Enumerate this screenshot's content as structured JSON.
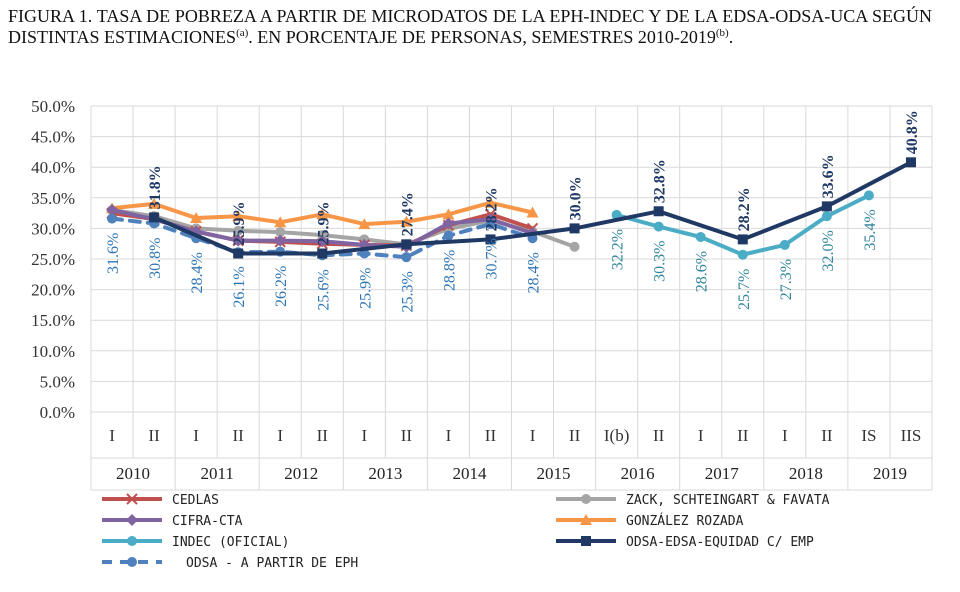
{
  "figure": {
    "title_main": "FIGURA 1. TASA DE POBREZA A PARTIR DE MICRODATOS DE LA EPH-INDEC Y DE LA EDSA-ODSA-UCA SEGÚN DISTINTAS ESTIMACIONES",
    "title_sup1": "(a)",
    "title_mid": ". EN PORCENTAJE DE PERSONAS, SEMESTRES 2010-2019",
    "title_sup2": "(b)",
    "title_end": "."
  },
  "chart_data": {
    "type": "line",
    "ylim": [
      0,
      50
    ],
    "yticks": [
      "0.0%",
      "5.0%",
      "10.0%",
      "15.0%",
      "20.0%",
      "25.0%",
      "30.0%",
      "35.0%",
      "40.0%",
      "45.0%",
      "50.0%"
    ],
    "ytick_values": [
      0,
      5,
      10,
      15,
      20,
      25,
      30,
      35,
      40,
      45,
      50
    ],
    "semesters": [
      "I",
      "II",
      "I",
      "II",
      "I",
      "II",
      "I",
      "II",
      "I",
      "II",
      "I",
      "II",
      "I(b)",
      "II",
      "I",
      "II",
      "I",
      "II",
      "IS",
      "IIS"
    ],
    "years": [
      "2010",
      "2011",
      "2012",
      "2013",
      "2014",
      "2015",
      "2016",
      "2017",
      "2018",
      "2019"
    ],
    "grid": true,
    "legend_position": "bottom",
    "series": [
      {
        "name": "CEDLAS",
        "color": "#c0504d",
        "marker": "x",
        "dash": false,
        "values": [
          32.5,
          31.5,
          29.5,
          28.0,
          27.8,
          27.5,
          27.3,
          27.2,
          30.5,
          32.3,
          30.0,
          null,
          null,
          null,
          null,
          null,
          null,
          null,
          null,
          null
        ]
      },
      {
        "name": "ZACK, SCHTEINGART & FAVATA",
        "color": "#a5a5a5",
        "marker": "circle",
        "dash": false,
        "values": [
          33.0,
          32.0,
          30.0,
          29.6,
          29.4,
          28.9,
          28.2,
          27.4,
          29.9,
          31.3,
          29.5,
          27.0,
          null,
          null,
          null,
          null,
          null,
          null,
          null,
          null
        ]
      },
      {
        "name": "CIFRA-CTA",
        "color": "#8064a2",
        "marker": "diamond",
        "dash": false,
        "values": [
          33.0,
          31.5,
          29.5,
          28.0,
          28.0,
          27.9,
          27.3,
          27.0,
          30.8,
          31.5,
          29.2,
          null,
          null,
          null,
          null,
          null,
          null,
          null,
          null,
          null
        ]
      },
      {
        "name": "GONZÁLEZ ROZADA",
        "color": "#f79646",
        "marker": "triangle",
        "dash": false,
        "values": [
          33.3,
          34.0,
          31.7,
          32.0,
          31.0,
          32.3,
          30.7,
          31.1,
          32.3,
          34.2,
          32.6,
          null,
          null,
          null,
          null,
          null,
          null,
          null,
          null,
          null
        ]
      },
      {
        "name": "INDEC (OFICIAL)",
        "color": "#4bacc6",
        "marker": "circle",
        "dash": false,
        "values": [
          null,
          null,
          null,
          null,
          null,
          null,
          null,
          null,
          null,
          null,
          null,
          null,
          32.2,
          30.3,
          28.6,
          25.7,
          27.3,
          32.0,
          35.4,
          null
        ]
      },
      {
        "name": "ODSA-EDSA-EQUIDAD C/ EMP",
        "color": "#1f3864",
        "marker": "square",
        "dash": false,
        "values": [
          null,
          31.8,
          null,
          25.9,
          null,
          25.9,
          null,
          27.4,
          null,
          28.2,
          null,
          30.0,
          null,
          32.8,
          null,
          28.2,
          null,
          33.6,
          null,
          40.8
        ]
      },
      {
        "name": "ODSA - A PARTIR DE EPH",
        "color": "#4f81bd",
        "marker": "circle",
        "dash": true,
        "values": [
          31.6,
          30.8,
          28.4,
          26.1,
          26.2,
          25.6,
          25.9,
          25.3,
          28.8,
          30.7,
          28.4,
          null,
          null,
          null,
          null,
          null,
          null,
          null,
          null,
          null
        ]
      }
    ],
    "labels_odsa_eph": [
      "31.6%",
      "30.8%",
      "28.4%",
      "26.1%",
      "26.2%",
      "25.6%",
      "25.9%",
      "25.3%",
      "28.8%",
      "30.7%",
      "28.4%"
    ],
    "labels_indec": [
      "32.2%",
      "30.3%",
      "28.6%",
      "25.7%",
      "27.3%",
      "32.0%",
      "35.4%"
    ],
    "labels_odsa_edsa": [
      "31.8%",
      "25.9%",
      "25.9%",
      "27.4%",
      "28.2%",
      "30.0%",
      "32.8%",
      "28.2%",
      "33.6%",
      "40.8%"
    ]
  }
}
